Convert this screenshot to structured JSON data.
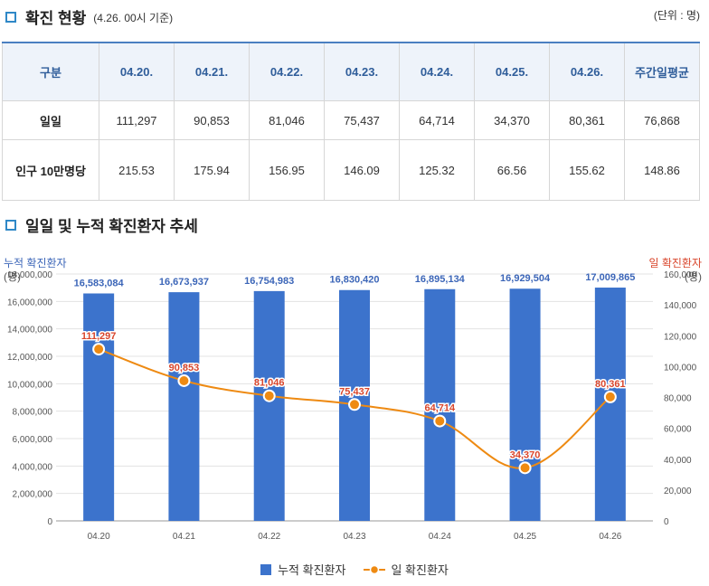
{
  "section1": {
    "title": "확진 현황",
    "subtitle": "(4.26. 00시 기준)",
    "unit": "(단위 : 명)"
  },
  "table": {
    "header_label": "구분",
    "columns": [
      "04.20.",
      "04.21.",
      "04.22.",
      "04.23.",
      "04.24.",
      "04.25.",
      "04.26.",
      "주간일평균"
    ],
    "rows": [
      {
        "label": "일일",
        "values": [
          "111,297",
          "90,853",
          "81,046",
          "75,437",
          "64,714",
          "34,370",
          "80,361",
          "76,868"
        ]
      },
      {
        "label": "인구 10만명당",
        "values": [
          "215.53",
          "175.94",
          "156.95",
          "146.09",
          "125.32",
          "66.56",
          "155.62",
          "148.86"
        ]
      }
    ]
  },
  "section2": {
    "title": "일일 및 누적 확진환자 추세"
  },
  "colors": {
    "bar": "#3c73cc",
    "line": "#ee8a12",
    "left_axis_title": "#3c66b8",
    "right_axis_title": "#d9462c",
    "bar_label": "#3c66b8",
    "line_label": "#d9462c",
    "accent": "#2f88c7"
  },
  "chart_data": {
    "type": "bar",
    "categories": [
      "04.20",
      "04.21",
      "04.22",
      "04.23",
      "04.24",
      "04.25",
      "04.26"
    ],
    "series": [
      {
        "name": "누적 확진환자",
        "type": "bar",
        "axis": "left",
        "values": [
          16583084,
          16673937,
          16754983,
          16830420,
          16895134,
          16929504,
          17009865
        ],
        "labels": [
          "16,583,084",
          "16,673,937",
          "16,754,983",
          "16,830,420",
          "16,895,134",
          "16,929,504",
          "17,009,865"
        ]
      },
      {
        "name": "일 확진환자",
        "type": "line",
        "axis": "right",
        "values": [
          111297,
          90853,
          81046,
          75437,
          64714,
          34370,
          80361
        ],
        "labels": [
          "111,297",
          "90,853",
          "81,046",
          "75,437",
          "64,714",
          "34,370",
          "80,361"
        ]
      }
    ],
    "y_left": {
      "title": "누적 확진환자",
      "unit": "(명)",
      "range": [
        0,
        18000000
      ],
      "ticks": [
        0,
        2000000,
        4000000,
        6000000,
        8000000,
        10000000,
        12000000,
        14000000,
        16000000,
        18000000
      ],
      "tick_labels": [
        "0",
        "2,000,000",
        "4,000,000",
        "6,000,000",
        "8,000,000",
        "10,000,000",
        "12,000,000",
        "14,000,000",
        "16,000,000",
        "18,000,000"
      ]
    },
    "y_right": {
      "title": "일 확진환자",
      "unit": "(명)",
      "range": [
        0,
        160000
      ],
      "ticks": [
        0,
        20000,
        40000,
        60000,
        80000,
        100000,
        120000,
        140000,
        160000
      ],
      "tick_labels": [
        "0",
        "20,000",
        "40,000",
        "60,000",
        "80,000",
        "100,000",
        "120,000",
        "140,000",
        "160,000"
      ]
    },
    "grid": true,
    "legend": "bottom"
  }
}
